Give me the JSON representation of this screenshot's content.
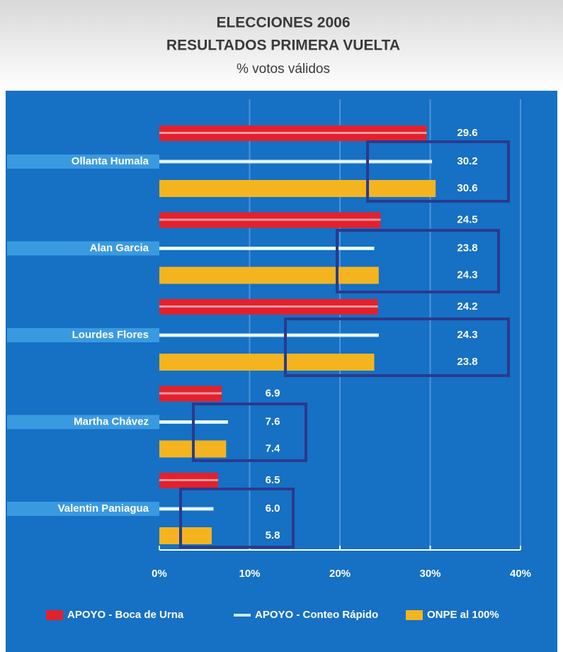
{
  "chart_data": {
    "type": "barh",
    "title": "ELECCIONES 2006",
    "subtitle": "RESULTADOS PRIMERA VUELTA",
    "axis_label": "% votos válidos",
    "categories": [
      "Ollanta Humala",
      "Alan Garcia",
      "Lourdes Flores",
      "Martha Chávez",
      "Valentin Paniagua"
    ],
    "series": [
      {
        "name": "APOYO - Boca de Urna",
        "color": "#e3212d",
        "values": [
          29.6,
          24.5,
          24.2,
          6.9,
          6.5
        ]
      },
      {
        "name": "APOYO - Conteo Rápido",
        "color": "#c8ecff",
        "values": [
          30.2,
          23.8,
          24.3,
          7.6,
          6.0
        ],
        "value_labels": [
          "30.2",
          "23.8",
          "24.3",
          "7.6",
          "6.0"
        ]
      },
      {
        "name": "ONPE al 100%",
        "color": "#f4b41f",
        "values": [
          30.6,
          24.3,
          23.8,
          7.4,
          5.8
        ]
      }
    ],
    "xlim": [
      0,
      40
    ],
    "xticks": [
      {
        "value": 0,
        "label": "0%"
      },
      {
        "value": 10,
        "label": "10%"
      },
      {
        "value": 20,
        "label": "20%"
      },
      {
        "value": 30,
        "label": "30%"
      },
      {
        "value": 40,
        "label": "40%"
      }
    ],
    "grid": true,
    "legend": "bottom"
  }
}
